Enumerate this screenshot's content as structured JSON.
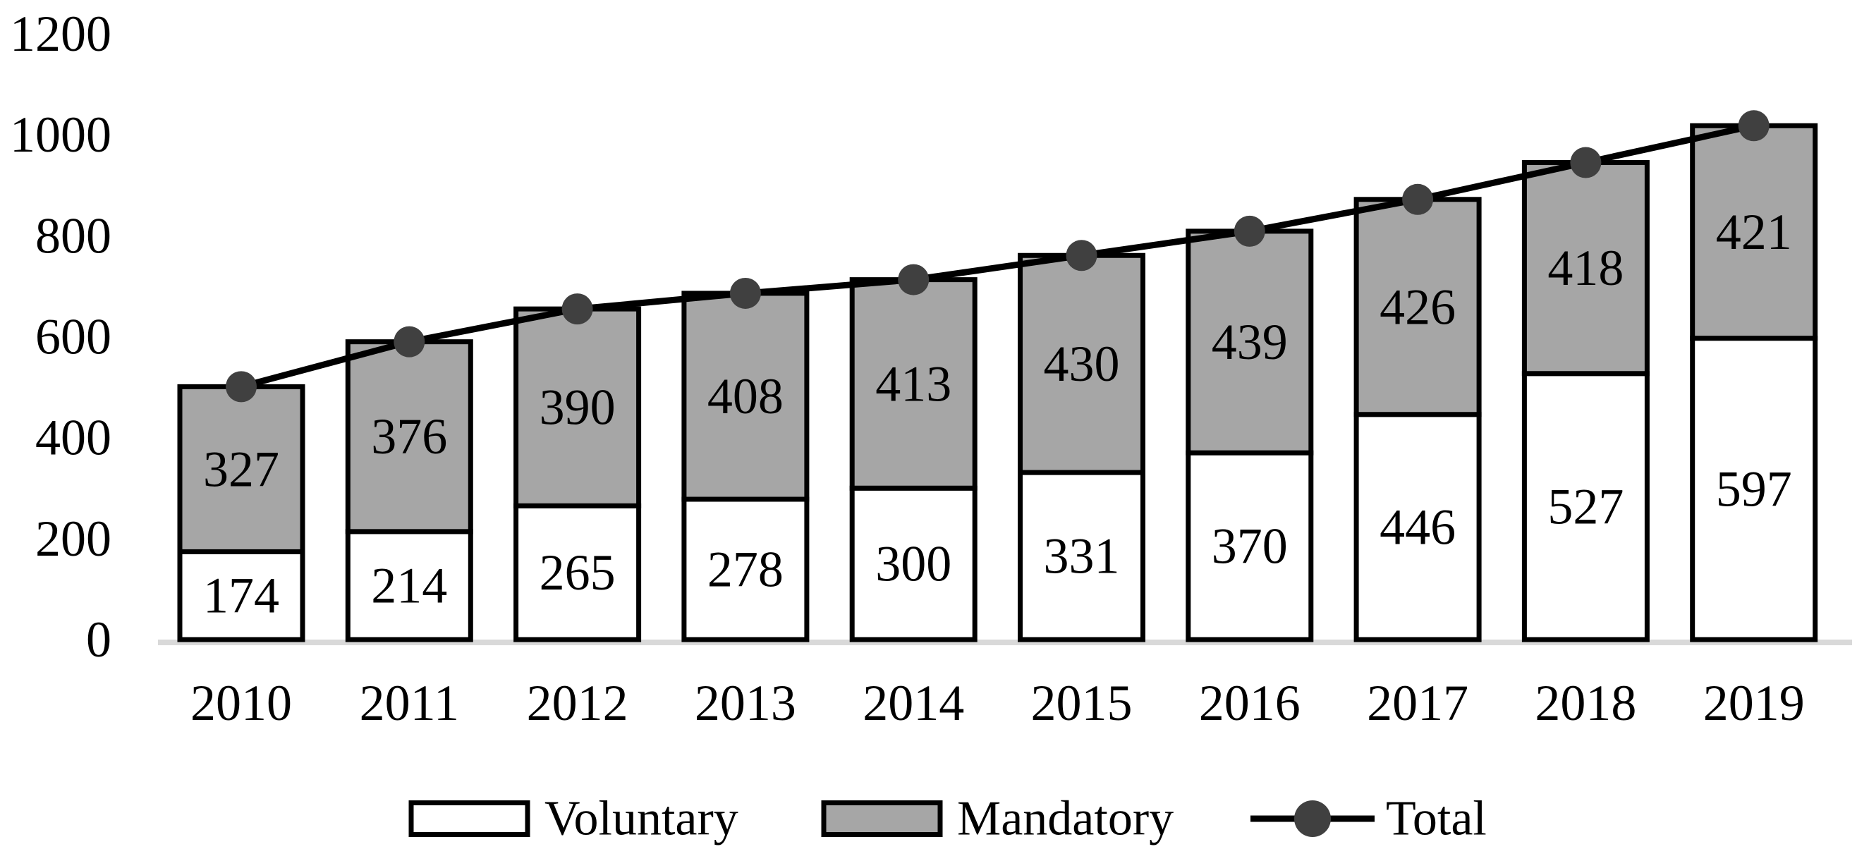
{
  "chart_data": {
    "type": "bar",
    "subtype": "stacked-bars-with-total-line",
    "title": "",
    "xlabel": "",
    "ylabel": "",
    "categories": [
      "2010",
      "2011",
      "2012",
      "2013",
      "2014",
      "2015",
      "2016",
      "2017",
      "2018",
      "2019"
    ],
    "series": [
      {
        "name": "Voluntary",
        "values": [
          174,
          214,
          265,
          278,
          300,
          331,
          370,
          446,
          527,
          597
        ],
        "fill": "#ffffff",
        "border": "#000000"
      },
      {
        "name": "Mandatory",
        "values": [
          327,
          376,
          390,
          408,
          413,
          430,
          439,
          426,
          418,
          421
        ],
        "fill": "#a6a6a6",
        "border": "#000000"
      }
    ],
    "line_series": {
      "name": "Total",
      "values": [
        501,
        590,
        655,
        686,
        713,
        761,
        809,
        872,
        945,
        1018
      ],
      "color": "#000000",
      "marker_color": "#404040"
    },
    "data_labels_shown": [
      "Voluntary",
      "Mandatory"
    ],
    "ylim": [
      0,
      1200
    ],
    "yticks": [
      0,
      200,
      400,
      600,
      800,
      1000,
      1200
    ],
    "grid": false,
    "axis_line_color": "#d9d9d9",
    "text_color": "#000000",
    "legend_position": "bottom",
    "legend": [
      {
        "label": "Voluntary",
        "swatch": "bar",
        "fill": "#ffffff"
      },
      {
        "label": "Mandatory",
        "swatch": "bar",
        "fill": "#a6a6a6"
      },
      {
        "label": "Total",
        "swatch": "line-marker",
        "fill": "#404040"
      }
    ]
  }
}
